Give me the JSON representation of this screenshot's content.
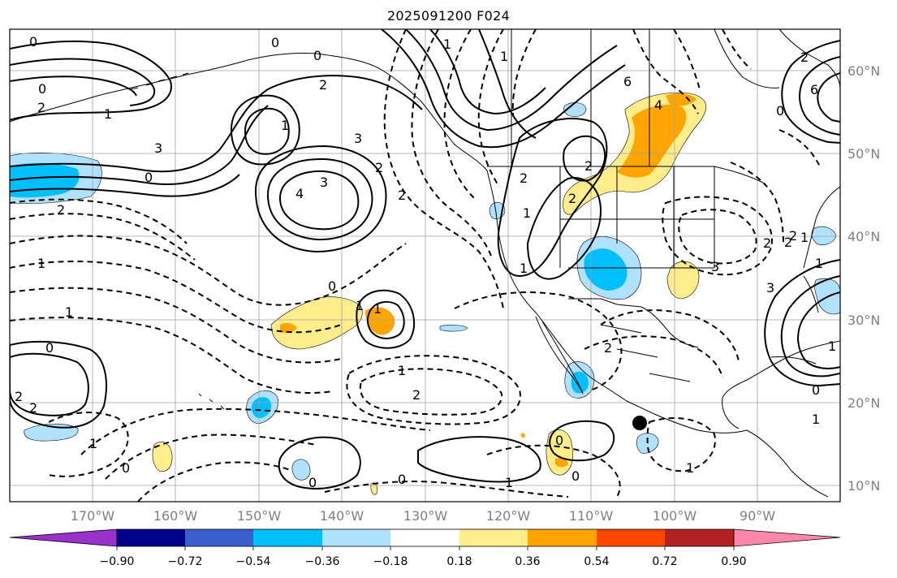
{
  "title": "2025091200 F024",
  "colors": {
    "land_outline": "#000000",
    "grid": "#a0a0a0",
    "contour": "#000000",
    "marker": "#000000"
  },
  "map": {
    "lon_labels": [
      "170°W",
      "160°W",
      "150°W",
      "140°W",
      "130°W",
      "120°W",
      "110°W",
      "100°W",
      "90°W"
    ],
    "lat_labels": [
      "60°N",
      "50°N",
      "40°N",
      "30°N",
      "20°N",
      "10°N"
    ],
    "contour_labels": [
      "0",
      "2",
      "1",
      "3",
      "0",
      "0",
      "3",
      "4",
      "3",
      "2",
      "2",
      "2",
      "1",
      "1",
      "0",
      "0",
      "2",
      "6",
      "4",
      "2",
      "2",
      "1",
      "1",
      "2",
      "1",
      "1",
      "3",
      "6",
      "2",
      "0",
      "1",
      "0",
      "1",
      "1",
      "0",
      "0",
      "2",
      "3",
      "1",
      "2",
      "2",
      "2",
      "1",
      "1",
      "0",
      "2",
      "0",
      "1",
      "1",
      "0",
      "1",
      "2",
      "1",
      "0",
      "0",
      "2",
      "1"
    ]
  },
  "colorbar": {
    "tick_labels": [
      "−0.90",
      "−0.72",
      "−0.54",
      "−0.36",
      "−0.18",
      "0.18",
      "0.36",
      "0.54",
      "0.72",
      "0.90"
    ],
    "colors": [
      "#9932cc",
      "#00008b",
      "#3a5fcd",
      "#00bfff",
      "#b0e2ff",
      "#ffffff",
      "#ffec8b",
      "#ffa500",
      "#ff4500",
      "#b22222",
      "#ff88aa"
    ]
  }
}
